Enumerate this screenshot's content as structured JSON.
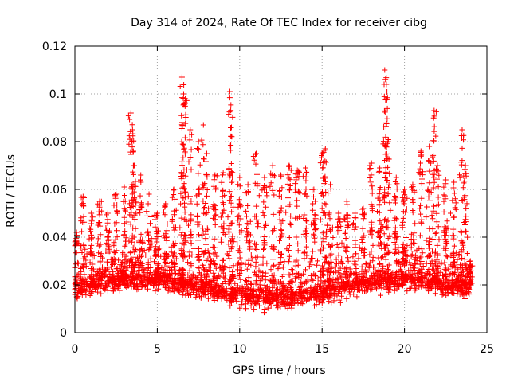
{
  "chart_data": {
    "type": "scatter",
    "title": "Day 314 of 2024, Rate Of TEC Index for receiver cibg",
    "xlabel": "GPS time / hours",
    "ylabel": "ROTI / TECUs",
    "xlim": [
      0,
      25
    ],
    "ylim": [
      0,
      0.12
    ],
    "x_ticks": [
      "0",
      "5",
      "10",
      "15",
      "20",
      "25"
    ],
    "y_ticks": [
      "0",
      "0.02",
      "0.04",
      "0.06",
      "0.08",
      "0.1",
      "0.12"
    ],
    "grid": true,
    "marker": "plus",
    "series": [
      {
        "name": "ROTI",
        "color": "#ff0000",
        "description": "dense cloud of points between ~0.005 and ~0.05 TECU/s across 0-24 h, with spikes",
        "x": [
          0.1,
          0.5,
          1.0,
          1.5,
          2.0,
          2.5,
          3.0,
          3.4,
          3.5,
          3.6,
          4.0,
          4.5,
          5.0,
          5.5,
          6.0,
          6.5,
          6.6,
          6.7,
          7.0,
          7.5,
          7.8,
          8.0,
          8.5,
          9.0,
          9.4,
          9.5,
          10.0,
          10.5,
          11.0,
          11.5,
          12.0,
          12.5,
          13.0,
          13.5,
          14.0,
          14.5,
          15.0,
          15.2,
          15.5,
          16.0,
          16.5,
          17.0,
          17.5,
          18.0,
          18.5,
          18.8,
          18.9,
          19.0,
          19.5,
          20.0,
          20.5,
          21.0,
          21.5,
          21.8,
          22.0,
          22.5,
          23.0,
          23.5,
          23.7,
          24.0
        ],
        "y": [
          0.042,
          0.057,
          0.05,
          0.055,
          0.05,
          0.058,
          0.061,
          0.092,
          0.085,
          0.07,
          0.066,
          0.058,
          0.05,
          0.054,
          0.06,
          0.107,
          0.1,
          0.098,
          0.085,
          0.08,
          0.087,
          0.075,
          0.066,
          0.067,
          0.101,
          0.086,
          0.065,
          0.062,
          0.075,
          0.065,
          0.07,
          0.066,
          0.07,
          0.068,
          0.069,
          0.06,
          0.075,
          0.077,
          0.062,
          0.05,
          0.055,
          0.05,
          0.052,
          0.071,
          0.069,
          0.11,
          0.104,
          0.08,
          0.065,
          0.06,
          0.062,
          0.076,
          0.078,
          0.093,
          0.07,
          0.064,
          0.063,
          0.085,
          0.07,
          0.03
        ]
      }
    ]
  }
}
